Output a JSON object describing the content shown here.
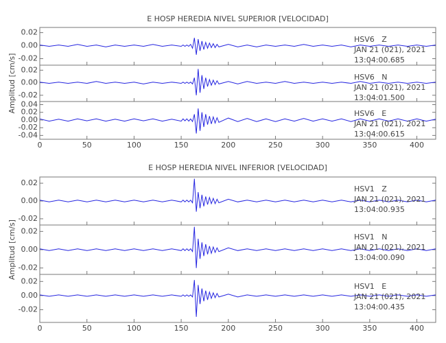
{
  "chart_data": [
    {
      "type": "line",
      "title": "E HOSP HEREDIA NIVEL SUPERIOR [VELOCIDAD]",
      "y_label": "Amplitud [cm/s]",
      "xlim": [
        0,
        420
      ],
      "xticks": [
        0,
        50,
        100,
        150,
        200,
        250,
        300,
        350,
        400
      ],
      "x": [
        0,
        10,
        20,
        30,
        40,
        50,
        60,
        70,
        80,
        90,
        100,
        110,
        120,
        130,
        140,
        150,
        152,
        154,
        156,
        158,
        160,
        162,
        164,
        166,
        168,
        170,
        172,
        174,
        176,
        178,
        180,
        182,
        184,
        186,
        188,
        190,
        200,
        210,
        220,
        230,
        240,
        250,
        260,
        270,
        280,
        290,
        300,
        310,
        320,
        330,
        340,
        350,
        360,
        370,
        380,
        390,
        400,
        410,
        420
      ],
      "panels": [
        {
          "ylim": [
            -0.03,
            0.028
          ],
          "yticks": [
            0.02,
            {
              "value": 0,
              "label": "0.00"
            },
            -0.02
          ],
          "color": "#2424e0",
          "annotations": [
            "HSV6   Z",
            "JAN 21 (021), 2021",
            "13:04:00.685"
          ],
          "values": [
            0.001,
            -0.001,
            0.001,
            -0.001,
            0.002,
            -0.001,
            0.001,
            -0.002,
            0.001,
            -0.001,
            0.001,
            -0.001,
            0.002,
            -0.001,
            0.001,
            -0.001,
            0.001,
            -0.001,
            0.001,
            -0.001,
            0.002,
            -0.004,
            0.012,
            -0.014,
            0.01,
            -0.008,
            0.007,
            -0.006,
            0.005,
            -0.004,
            0.004,
            -0.003,
            0.003,
            -0.003,
            0.002,
            -0.002,
            0.002,
            -0.002,
            0.001,
            -0.002,
            0.001,
            -0.001,
            0.001,
            -0.001,
            0.002,
            -0.001,
            0.001,
            -0.001,
            0.001,
            -0.002,
            0.001,
            -0.001,
            0.001,
            -0.001,
            0.001,
            -0.001,
            0.001,
            -0.001,
            0.001
          ]
        },
        {
          "ylim": [
            -0.03,
            0.028
          ],
          "yticks": [
            0.02,
            {
              "value": 0,
              "label": "0.00"
            },
            -0.02
          ],
          "color": "#2424e0",
          "annotations": [
            "HSV6   N",
            "JAN 21 (021), 2021",
            "13:04:01.500"
          ],
          "values": [
            0.001,
            -0.001,
            0.001,
            -0.001,
            0.001,
            -0.001,
            0.002,
            -0.001,
            0.001,
            -0.001,
            0.001,
            -0.002,
            0.001,
            -0.001,
            0.001,
            -0.001,
            0.001,
            -0.001,
            0.001,
            -0.001,
            0.001,
            -0.002,
            0.008,
            -0.02,
            0.022,
            -0.016,
            0.012,
            -0.01,
            0.008,
            -0.006,
            0.005,
            -0.004,
            0.004,
            -0.003,
            0.003,
            -0.002,
            0.002,
            -0.002,
            0.002,
            -0.001,
            0.001,
            -0.001,
            0.002,
            -0.001,
            0.001,
            -0.001,
            0.001,
            -0.001,
            0.001,
            -0.001,
            0.002,
            -0.001,
            0.001,
            -0.001,
            0.001,
            -0.001,
            0.001,
            -0.001,
            0.001
          ]
        },
        {
          "ylim": [
            -0.05,
            0.048
          ],
          "yticks": [
            0.04,
            0.02,
            {
              "value": 0,
              "label": "0.00"
            },
            -0.02,
            -0.04
          ],
          "color": "#2424e0",
          "annotations": [
            "HSV6   E",
            "JAN 21 (021), 2021",
            "13:04:00.615"
          ],
          "values": [
            0.003,
            -0.003,
            0.002,
            -0.003,
            0.003,
            -0.002,
            0.003,
            -0.003,
            0.002,
            -0.003,
            0.003,
            -0.002,
            0.003,
            -0.003,
            0.002,
            -0.003,
            0.003,
            -0.002,
            0.003,
            -0.003,
            0.003,
            -0.004,
            0.015,
            -0.035,
            0.03,
            -0.028,
            0.02,
            -0.018,
            0.015,
            -0.012,
            0.01,
            -0.01,
            0.008,
            -0.008,
            0.006,
            -0.006,
            0.005,
            -0.004,
            0.004,
            -0.004,
            0.003,
            -0.004,
            0.003,
            -0.003,
            0.004,
            -0.003,
            0.003,
            -0.003,
            0.003,
            -0.004,
            0.003,
            -0.003,
            0.003,
            -0.003,
            0.003,
            -0.003,
            0.003,
            -0.003,
            0.002
          ]
        }
      ]
    },
    {
      "type": "line",
      "title": "E HOSP HEREDIA NIVEL INFERIOR [VELOCIDAD]",
      "y_label": "Amplitud [cm/s]",
      "xlim": [
        0,
        420
      ],
      "xticks": [
        0,
        50,
        100,
        150,
        200,
        250,
        300,
        350,
        400
      ],
      "x": [
        0,
        10,
        20,
        30,
        40,
        50,
        60,
        70,
        80,
        90,
        100,
        110,
        120,
        130,
        140,
        150,
        152,
        154,
        156,
        158,
        160,
        162,
        164,
        166,
        168,
        170,
        172,
        174,
        176,
        178,
        180,
        182,
        184,
        186,
        188,
        190,
        200,
        210,
        220,
        230,
        240,
        250,
        260,
        270,
        280,
        290,
        300,
        310,
        320,
        330,
        340,
        350,
        360,
        370,
        380,
        390,
        400,
        410,
        420
      ],
      "panels": [
        {
          "ylim": [
            -0.027,
            0.027
          ],
          "yticks": [
            0.02,
            {
              "value": 0,
              "label": "0.00"
            },
            -0.02
          ],
          "color": "#2424e0",
          "annotations": [
            "HSV1   Z",
            "JAN 21 (021), 2021",
            "13:04:00.935"
          ],
          "values": [
            0.001,
            -0.001,
            0.001,
            -0.001,
            0.001,
            -0.001,
            0.001,
            -0.001,
            0.001,
            -0.001,
            0.001,
            -0.001,
            0.001,
            -0.001,
            0.001,
            -0.001,
            0.001,
            -0.001,
            0.001,
            -0.001,
            0.001,
            -0.002,
            0.025,
            -0.012,
            0.01,
            -0.008,
            0.007,
            -0.006,
            0.005,
            -0.004,
            0.004,
            -0.003,
            0.003,
            -0.003,
            0.002,
            -0.002,
            0.002,
            -0.001,
            0.001,
            -0.001,
            0.001,
            -0.001,
            0.001,
            -0.001,
            0.001,
            -0.001,
            0.001,
            -0.001,
            0.001,
            -0.001,
            0.001,
            -0.001,
            0.001,
            -0.001,
            0.001,
            -0.001,
            0.001,
            -0.001,
            0.001
          ]
        },
        {
          "ylim": [
            -0.027,
            0.027
          ],
          "yticks": [
            0.02,
            {
              "value": 0,
              "label": "0.00"
            },
            -0.02
          ],
          "color": "#2424e0",
          "annotations": [
            "HSV1   N",
            "JAN 21 (021), 2021",
            "13:04:00.090"
          ],
          "values": [
            0.001,
            -0.001,
            0.001,
            -0.001,
            0.001,
            -0.001,
            0.001,
            -0.001,
            0.001,
            -0.001,
            0.001,
            -0.001,
            0.001,
            -0.001,
            0.001,
            -0.001,
            0.001,
            -0.001,
            0.001,
            -0.001,
            0.001,
            -0.002,
            0.025,
            -0.02,
            0.012,
            -0.01,
            0.008,
            -0.007,
            0.006,
            -0.005,
            0.004,
            -0.004,
            0.003,
            -0.003,
            0.002,
            -0.002,
            0.002,
            -0.001,
            0.001,
            -0.001,
            0.001,
            -0.001,
            0.001,
            -0.001,
            0.001,
            -0.001,
            0.001,
            -0.001,
            0.001,
            -0.001,
            0.001,
            -0.001,
            0.001,
            -0.001,
            0.001,
            -0.001,
            0.001,
            -0.001,
            0.001
          ]
        },
        {
          "ylim": [
            -0.038,
            0.03
          ],
          "yticks": [
            0.02,
            {
              "value": 0,
              "label": "0.00"
            },
            -0.02
          ],
          "color": "#2424e0",
          "annotations": [
            "HSV1   E",
            "JAN 21 (021), 2021",
            "13:04:00.435"
          ],
          "values": [
            0.001,
            -0.001,
            0.001,
            -0.001,
            0.001,
            -0.001,
            0.001,
            -0.001,
            0.001,
            -0.001,
            0.001,
            -0.001,
            0.001,
            -0.001,
            0.001,
            -0.001,
            0.001,
            -0.001,
            0.001,
            -0.001,
            0.001,
            -0.002,
            0.022,
            -0.03,
            0.015,
            -0.012,
            0.01,
            -0.008,
            0.007,
            -0.006,
            0.005,
            -0.004,
            0.004,
            -0.003,
            0.003,
            -0.002,
            0.002,
            -0.002,
            0.001,
            -0.001,
            0.001,
            -0.001,
            0.001,
            -0.001,
            0.001,
            -0.001,
            0.001,
            -0.001,
            0.001,
            -0.001,
            0.001,
            -0.001,
            0.001,
            -0.001,
            0.001,
            -0.001,
            0.001,
            -0.001,
            0.001
          ]
        }
      ]
    }
  ]
}
